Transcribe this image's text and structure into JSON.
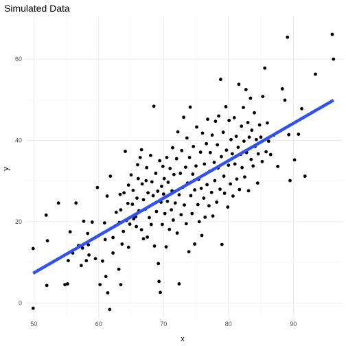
{
  "chart_data": {
    "type": "scatter",
    "title": "Simulated Data",
    "xlabel": "x",
    "ylabel": "y",
    "xlim": [
      48.7,
      97.7
    ],
    "ylim": [
      -3.5,
      70.5
    ],
    "x_ticks": [
      50,
      60,
      70,
      80,
      90
    ],
    "y_ticks": [
      0,
      20,
      40,
      60
    ],
    "grid": true,
    "legend": "none",
    "point_color": "#000000",
    "fit_line": {
      "x": [
        49.9,
        96.2
      ],
      "y": [
        7.3,
        49.9
      ],
      "color": "#3050F8",
      "method": "linear"
    },
    "points": [
      [
        49.9,
        13.4
      ],
      [
        49.9,
        -1.3
      ],
      [
        51.9,
        21.6
      ],
      [
        52.1,
        15.3
      ],
      [
        52.0,
        4.3
      ],
      [
        53.8,
        24.6
      ],
      [
        54.8,
        4.5
      ],
      [
        55.2,
        4.7
      ],
      [
        55.3,
        10.4
      ],
      [
        55.6,
        17.5
      ],
      [
        56.0,
        12.3
      ],
      [
        56.5,
        24.6
      ],
      [
        56.9,
        14.1
      ],
      [
        57.3,
        9.2
      ],
      [
        57.5,
        13.5
      ],
      [
        57.7,
        20.1
      ],
      [
        58.1,
        10.4
      ],
      [
        58.4,
        14.3
      ],
      [
        58.5,
        11.8
      ],
      [
        58.3,
        17.1
      ],
      [
        59.0,
        19.9
      ],
      [
        59.5,
        10.9
      ],
      [
        59.8,
        28.4
      ],
      [
        60.2,
        4.5
      ],
      [
        60.6,
        10.3
      ],
      [
        60.9,
        19.7
      ],
      [
        61.1,
        6.5
      ],
      [
        61.4,
        2.5
      ],
      [
        61.7,
        -1.6
      ],
      [
        61.3,
        26.3
      ],
      [
        61.8,
        31.2
      ],
      [
        61.0,
        15.6
      ],
      [
        62.2,
        16.1
      ],
      [
        62.6,
        19.0
      ],
      [
        62.7,
        22.3
      ],
      [
        62.2,
        12.3
      ],
      [
        63.1,
        8.3
      ],
      [
        63.2,
        19.8
      ],
      [
        63.3,
        26.7
      ],
      [
        63.4,
        4.5
      ],
      [
        63.6,
        14.5
      ],
      [
        63.8,
        17.6
      ],
      [
        63.4,
        22.9
      ],
      [
        63.9,
        27.1
      ],
      [
        64.1,
        37.3
      ],
      [
        64.3,
        20.3
      ],
      [
        64.5,
        24.5
      ],
      [
        64.6,
        29.0
      ],
      [
        64.6,
        13.7
      ],
      [
        64.8,
        19.4
      ],
      [
        65.0,
        31.5
      ],
      [
        65.2,
        24.3
      ],
      [
        65.4,
        20.7
      ],
      [
        65.3,
        27.7
      ],
      [
        65.7,
        21.2
      ],
      [
        65.8,
        18.8
      ],
      [
        65.9,
        25.8
      ],
      [
        66.0,
        34.0
      ],
      [
        66.1,
        30.6
      ],
      [
        66.2,
        22.7
      ],
      [
        66.4,
        35.8
      ],
      [
        66.6,
        18.0
      ],
      [
        66.7,
        29.3
      ],
      [
        66.6,
        37.7
      ],
      [
        66.9,
        25.4
      ],
      [
        66.9,
        15.8
      ],
      [
        67.2,
        23.1
      ],
      [
        67.3,
        30.1
      ],
      [
        67.4,
        33.3
      ],
      [
        67.5,
        16.2
      ],
      [
        67.6,
        27.1
      ],
      [
        67.8,
        21.0
      ],
      [
        68.0,
        36.3
      ],
      [
        68.1,
        19.3
      ],
      [
        68.2,
        29.8
      ],
      [
        68.4,
        26.4
      ],
      [
        68.5,
        48.4
      ],
      [
        68.6,
        14.0
      ],
      [
        68.8,
        31.9
      ],
      [
        68.9,
        22.5
      ],
      [
        69.1,
        27.5
      ],
      [
        69.2,
        9.7
      ],
      [
        69.3,
        5.3
      ],
      [
        69.4,
        35.0
      ],
      [
        69.6,
        24.8
      ],
      [
        69.5,
        2.6
      ],
      [
        69.7,
        28.7
      ],
      [
        69.8,
        19.3
      ],
      [
        69.9,
        33.6
      ],
      [
        70.0,
        26.8
      ],
      [
        70.1,
        30.6
      ],
      [
        70.2,
        22.0
      ],
      [
        70.4,
        13.8
      ],
      [
        70.5,
        35.8
      ],
      [
        70.6,
        25.0
      ],
      [
        70.7,
        29.7
      ],
      [
        70.9,
        18.1
      ],
      [
        71.0,
        33.1
      ],
      [
        71.2,
        22.9
      ],
      [
        71.3,
        27.6
      ],
      [
        71.4,
        38.2
      ],
      [
        71.5,
        20.4
      ],
      [
        71.6,
        31.6
      ],
      [
        71.8,
        24.6
      ],
      [
        72.0,
        35.5
      ],
      [
        72.1,
        17.2
      ],
      [
        72.2,
        42.1
      ],
      [
        72.4,
        26.6
      ],
      [
        72.4,
        4.7
      ],
      [
        72.6,
        31.9
      ],
      [
        72.7,
        21.7
      ],
      [
        72.8,
        37.5
      ],
      [
        73.0,
        28.5
      ],
      [
        73.1,
        45.7
      ],
      [
        73.2,
        24.1
      ],
      [
        73.4,
        33.4
      ],
      [
        73.5,
        19.5
      ],
      [
        73.6,
        40.6
      ],
      [
        73.7,
        29.5
      ],
      [
        73.9,
        12.6
      ],
      [
        74.0,
        35.8
      ],
      [
        74.1,
        48.2
      ],
      [
        74.2,
        26.4
      ],
      [
        74.4,
        22.0
      ],
      [
        74.5,
        31.7
      ],
      [
        74.6,
        38.5
      ],
      [
        74.8,
        27.8
      ],
      [
        74.8,
        14.5
      ],
      [
        75.0,
        33.7
      ],
      [
        75.1,
        43.3
      ],
      [
        75.3,
        24.2
      ],
      [
        75.4,
        30.4
      ],
      [
        75.5,
        20.0
      ],
      [
        75.7,
        37.1
      ],
      [
        75.8,
        28.2
      ],
      [
        75.9,
        16.6
      ],
      [
        76.0,
        41.8
      ],
      [
        76.2,
        25.8
      ],
      [
        76.3,
        34.2
      ],
      [
        76.4,
        21.1
      ],
      [
        76.6,
        39.2
      ],
      [
        76.7,
        29.1
      ],
      [
        76.8,
        45.2
      ],
      [
        77.0,
        23.9
      ],
      [
        77.1,
        32.4
      ],
      [
        77.2,
        37.0
      ],
      [
        77.4,
        27.2
      ],
      [
        77.5,
        41.3
      ],
      [
        77.6,
        21.4
      ],
      [
        77.8,
        34.6
      ],
      [
        77.9,
        30.1
      ],
      [
        78.0,
        44.7
      ],
      [
        78.2,
        24.8
      ],
      [
        78.3,
        38.9
      ],
      [
        78.4,
        33.2
      ],
      [
        78.5,
        46.0
      ],
      [
        78.7,
        28.0
      ],
      [
        78.8,
        55.0
      ],
      [
        78.9,
        36.0
      ],
      [
        79.0,
        14.4
      ],
      [
        79.2,
        42.0
      ],
      [
        79.3,
        31.2
      ],
      [
        79.4,
        27.0
      ],
      [
        79.6,
        48.3
      ],
      [
        79.7,
        37.6
      ],
      [
        79.9,
        23.6
      ],
      [
        80.0,
        33.9
      ],
      [
        80.1,
        44.9
      ],
      [
        80.3,
        29.3
      ],
      [
        80.4,
        40.2
      ],
      [
        80.6,
        36.7
      ],
      [
        80.7,
        26.3
      ],
      [
        80.9,
        45.6
      ],
      [
        81.0,
        34.2
      ],
      [
        81.2,
        41.0
      ],
      [
        81.3,
        30.5
      ],
      [
        81.5,
        38.3
      ],
      [
        81.6,
        53.8
      ],
      [
        81.7,
        27.9
      ],
      [
        81.9,
        36.6
      ],
      [
        82.0,
        43.5
      ],
      [
        82.1,
        33.3
      ],
      [
        82.3,
        48.1
      ],
      [
        82.4,
        39.8
      ],
      [
        82.5,
        31.0
      ],
      [
        82.7,
        52.5
      ],
      [
        82.8,
        37.0
      ],
      [
        83.0,
        44.4
      ],
      [
        83.1,
        27.6
      ],
      [
        83.2,
        40.8
      ],
      [
        83.4,
        50.4
      ],
      [
        83.5,
        35.3
      ],
      [
        83.6,
        42.5
      ],
      [
        83.8,
        33.7
      ],
      [
        84.0,
        46.8
      ],
      [
        84.1,
        38.5
      ],
      [
        84.3,
        40.2
      ],
      [
        84.5,
        29.5
      ],
      [
        84.6,
        36.7
      ],
      [
        84.8,
        43.8
      ],
      [
        85.0,
        40.8
      ],
      [
        85.2,
        34.8
      ],
      [
        85.3,
        50.8
      ],
      [
        85.6,
        57.8
      ],
      [
        85.8,
        37.2
      ],
      [
        86.0,
        44.3
      ],
      [
        86.2,
        39.8
      ],
      [
        86.5,
        36.5
      ],
      [
        87.0,
        41.3
      ],
      [
        87.6,
        33.6
      ],
      [
        88.3,
        52.7
      ],
      [
        88.7,
        49.9
      ],
      [
        89.1,
        65.4
      ],
      [
        89.3,
        41.4
      ],
      [
        89.5,
        30.1
      ],
      [
        90.2,
        35.2
      ],
      [
        90.8,
        41.5
      ],
      [
        91.3,
        47.8
      ],
      [
        91.8,
        31.2
      ],
      [
        93.4,
        56.3
      ],
      [
        96.0,
        66.1
      ],
      [
        96.2,
        60.0
      ]
    ]
  }
}
